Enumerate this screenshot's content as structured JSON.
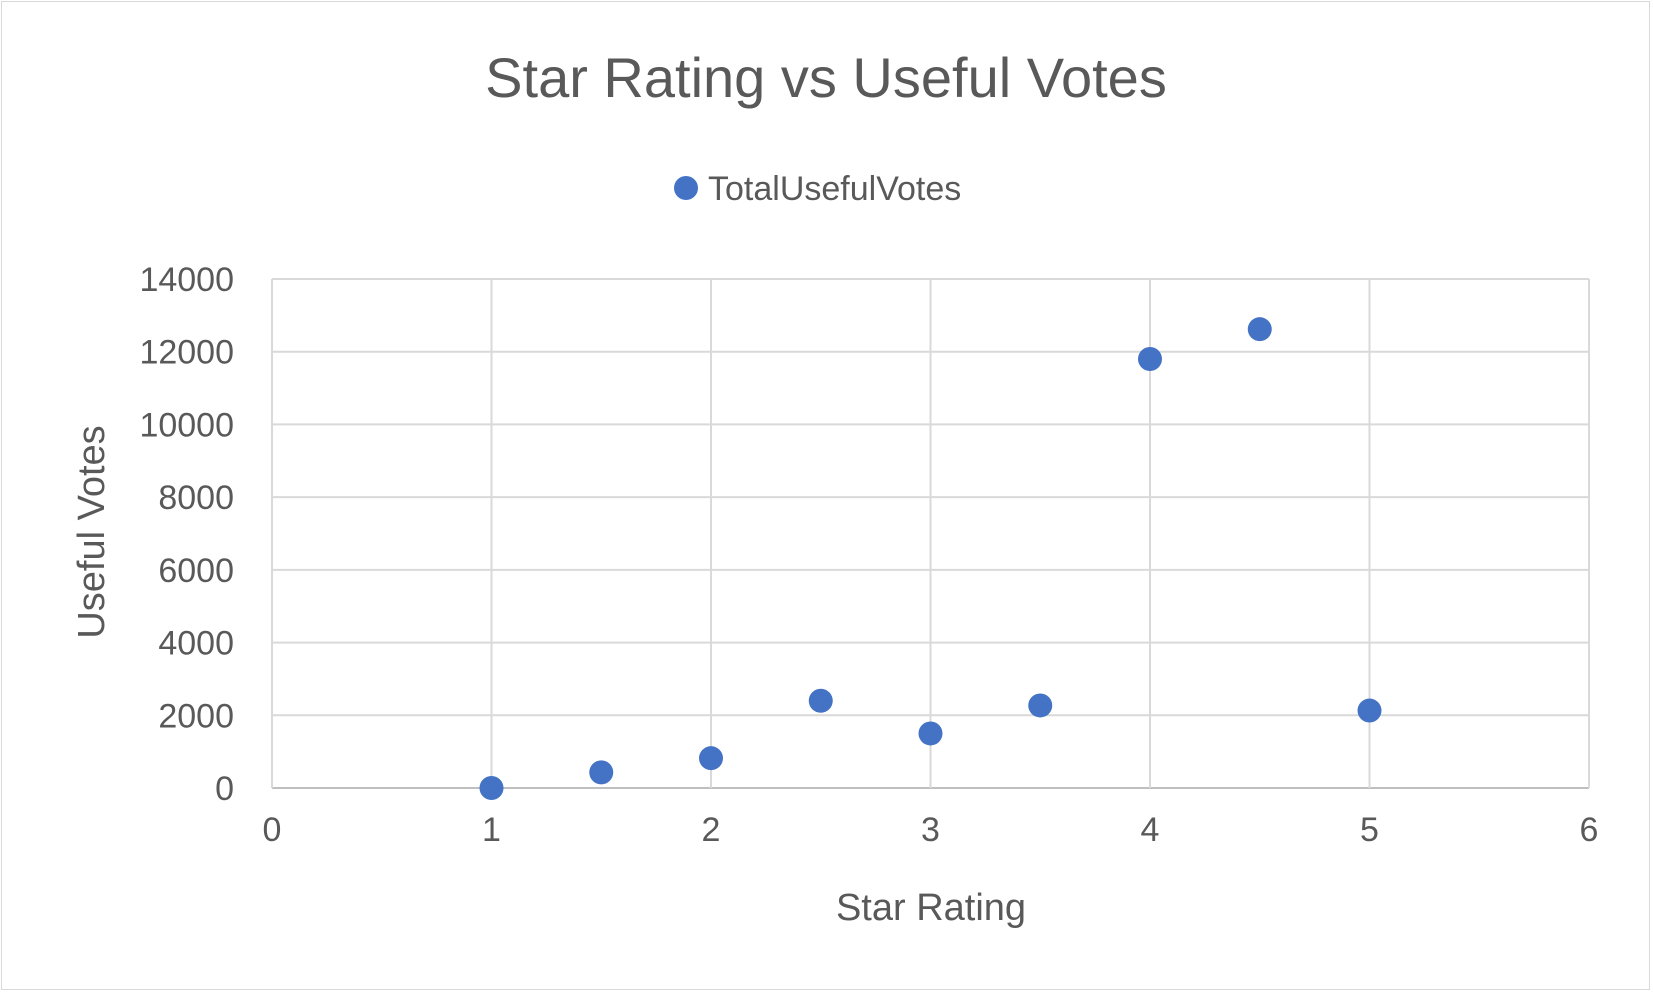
{
  "chart_data": {
    "type": "scatter",
    "title": "Star Rating vs Useful Votes",
    "xlabel": "Star Rating",
    "ylabel": "Useful Votes",
    "xlim": [
      0,
      6
    ],
    "ylim": [
      0,
      14000
    ],
    "x_ticks": [
      "0",
      "1",
      "2",
      "3",
      "4",
      "5",
      "6"
    ],
    "y_ticks": [
      "0",
      "2000",
      "4000",
      "6000",
      "8000",
      "10000",
      "12000",
      "14000"
    ],
    "grid": true,
    "legend_position": "top",
    "series": [
      {
        "name": "TotalUsefulVotes",
        "color": "#4472c4",
        "points": [
          {
            "x": 1,
            "y": 0
          },
          {
            "x": 1.5,
            "y": 430
          },
          {
            "x": 2,
            "y": 820
          },
          {
            "x": 2.5,
            "y": 2400
          },
          {
            "x": 3,
            "y": 1500
          },
          {
            "x": 3.5,
            "y": 2270
          },
          {
            "x": 4,
            "y": 11800
          },
          {
            "x": 4.5,
            "y": 12620
          },
          {
            "x": 5,
            "y": 2130
          }
        ]
      }
    ]
  }
}
